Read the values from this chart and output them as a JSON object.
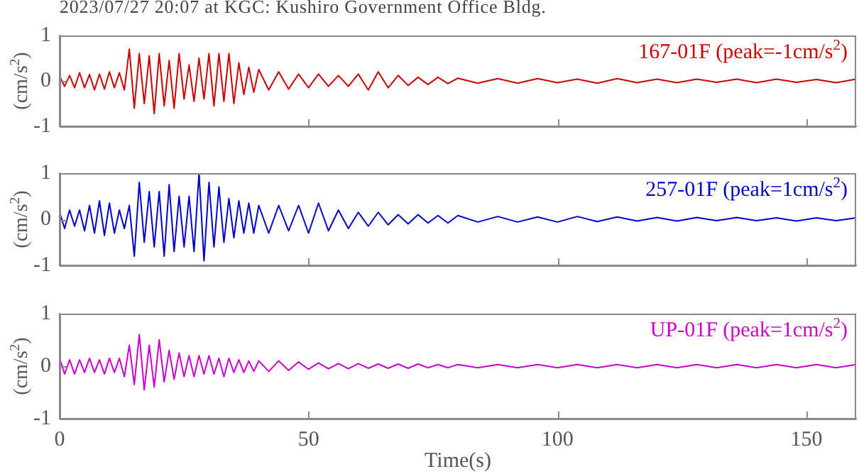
{
  "chart_data": [
    {
      "type": "line",
      "title": "2023/07/27 20:07 at KGC: Kushiro Government Office Bldg.",
      "ylabel": "(cm/s$^{2}$)",
      "annotations": [
        "167-01F (peak=-1cm/s$^{2}$)"
      ],
      "marker": "none",
      "tick_labels": "y",
      "xlim": [
        0,
        160
      ],
      "xticks": [
        0,
        50,
        100,
        150
      ],
      "ylim": [
        -1,
        1
      ],
      "yticks": [
        -1,
        0,
        1
      ],
      "x": [
        0,
        1,
        2,
        3,
        4,
        5,
        6,
        7,
        8,
        9,
        10,
        11,
        12,
        13,
        14,
        15,
        16,
        17,
        18,
        19,
        20,
        21,
        22,
        23,
        24,
        25,
        26,
        27,
        28,
        29,
        30,
        31,
        32,
        33,
        34,
        35,
        36,
        37,
        38,
        39,
        40,
        42,
        44,
        46,
        48,
        50,
        52,
        54,
        56,
        58,
        60,
        62,
        64,
        66,
        68,
        70,
        72,
        74,
        76,
        78,
        80,
        84,
        88,
        92,
        96,
        100,
        104,
        108,
        112,
        116,
        120,
        124,
        128,
        132,
        136,
        140,
        144,
        148,
        152,
        156,
        160
      ],
      "series": [
        {
          "color": "#cc0000",
          "values": [
            0.1,
            -0.12,
            0.12,
            -0.15,
            0.18,
            -0.15,
            0.14,
            -0.2,
            0.15,
            -0.18,
            0.2,
            -0.15,
            0.18,
            -0.2,
            0.7,
            -0.6,
            0.6,
            -0.5,
            0.55,
            -0.72,
            0.6,
            -0.55,
            0.45,
            -0.6,
            0.6,
            -0.4,
            0.35,
            -0.45,
            0.5,
            -0.4,
            0.6,
            -0.55,
            0.6,
            -0.45,
            0.6,
            -0.5,
            0.4,
            -0.3,
            0.3,
            -0.25,
            0.25,
            -0.2,
            0.2,
            -0.18,
            0.15,
            -0.15,
            0.15,
            -0.12,
            0.12,
            -0.12,
            0.15,
            -0.2,
            0.2,
            -0.15,
            0.12,
            -0.1,
            0.08,
            -0.08,
            0.08,
            -0.06,
            0.06,
            -0.05,
            0.05,
            -0.05,
            0.05,
            -0.04,
            0.04,
            -0.05,
            0.05,
            -0.04,
            0.04,
            -0.04,
            0.04,
            -0.03,
            0.04,
            -0.04,
            0.04,
            -0.03,
            0.03,
            -0.04,
            0.04
          ]
        }
      ]
    },
    {
      "type": "line",
      "ylabel": "(cm/s$^{2}$)",
      "annotations": [
        "257-01F (peak=1cm/s$^{2}$)"
      ],
      "marker": "none",
      "tick_labels": "y",
      "xlim": [
        0,
        160
      ],
      "xticks": [
        0,
        50,
        100,
        150
      ],
      "ylim": [
        -1,
        1
      ],
      "yticks": [
        -1,
        0,
        1
      ],
      "x": [
        0,
        1,
        2,
        3,
        4,
        5,
        6,
        7,
        8,
        9,
        10,
        11,
        12,
        13,
        14,
        15,
        16,
        17,
        18,
        19,
        20,
        21,
        22,
        23,
        24,
        25,
        26,
        27,
        28,
        29,
        30,
        31,
        32,
        33,
        34,
        35,
        36,
        37,
        38,
        39,
        40,
        42,
        44,
        46,
        48,
        50,
        52,
        54,
        56,
        58,
        60,
        62,
        64,
        66,
        68,
        70,
        72,
        74,
        76,
        78,
        80,
        84,
        88,
        92,
        96,
        100,
        104,
        108,
        112,
        116,
        120,
        124,
        128,
        132,
        136,
        140,
        144,
        148,
        152,
        156,
        160
      ],
      "series": [
        {
          "color": "#0000cc",
          "values": [
            0.15,
            -0.2,
            0.2,
            -0.15,
            0.2,
            -0.25,
            0.3,
            -0.3,
            0.4,
            -0.35,
            0.35,
            -0.3,
            0.2,
            -0.2,
            0.3,
            -0.8,
            0.8,
            -0.5,
            0.6,
            -0.6,
            0.6,
            -0.8,
            0.75,
            -0.7,
            0.5,
            -0.6,
            0.5,
            -0.7,
            1.0,
            -0.9,
            0.8,
            -0.6,
            0.7,
            -0.5,
            0.45,
            -0.4,
            0.4,
            -0.3,
            0.35,
            -0.3,
            0.3,
            -0.3,
            0.3,
            -0.25,
            0.3,
            -0.3,
            0.35,
            -0.25,
            0.2,
            -0.2,
            0.15,
            -0.15,
            0.15,
            -0.12,
            0.1,
            -0.1,
            0.1,
            -0.08,
            0.08,
            -0.08,
            0.08,
            -0.06,
            0.06,
            -0.06,
            0.05,
            -0.06,
            0.06,
            -0.05,
            0.05,
            -0.04,
            0.04,
            -0.04,
            0.04,
            -0.03,
            0.04,
            -0.03,
            0.03,
            -0.04,
            0.03,
            -0.03,
            0.03
          ]
        }
      ]
    },
    {
      "type": "line",
      "ylabel": "(cm/s$^{2}$)",
      "xlabel": "Time(s)",
      "annotations": [
        "UP-01F (peak=1cm/s$^{2}$)"
      ],
      "marker": "none",
      "xlim": [
        0,
        160
      ],
      "xticks": [
        0,
        50,
        100,
        150
      ],
      "ylim": [
        -1,
        1
      ],
      "yticks": [
        -1,
        0,
        1
      ],
      "x": [
        0,
        1,
        2,
        3,
        4,
        5,
        6,
        7,
        8,
        9,
        10,
        11,
        12,
        13,
        14,
        15,
        16,
        17,
        18,
        19,
        20,
        21,
        22,
        23,
        24,
        25,
        26,
        27,
        28,
        29,
        30,
        31,
        32,
        33,
        34,
        35,
        36,
        37,
        38,
        39,
        40,
        42,
        44,
        46,
        48,
        50,
        52,
        54,
        56,
        58,
        60,
        62,
        64,
        66,
        68,
        70,
        72,
        74,
        76,
        78,
        80,
        84,
        88,
        92,
        96,
        100,
        104,
        108,
        112,
        116,
        120,
        124,
        128,
        132,
        136,
        140,
        144,
        148,
        152,
        156,
        160
      ],
      "series": [
        {
          "color": "#cc00cc",
          "values": [
            0.15,
            -0.15,
            0.12,
            -0.15,
            0.12,
            -0.12,
            0.15,
            -0.12,
            0.12,
            -0.15,
            0.15,
            -0.12,
            0.15,
            -0.2,
            0.4,
            -0.35,
            0.6,
            -0.45,
            0.4,
            -0.4,
            0.5,
            -0.3,
            0.3,
            -0.25,
            0.25,
            -0.2,
            0.2,
            -0.2,
            0.2,
            -0.15,
            0.2,
            -0.15,
            0.15,
            -0.2,
            0.15,
            -0.12,
            0.12,
            -0.12,
            0.1,
            -0.1,
            0.1,
            -0.1,
            0.1,
            -0.08,
            0.08,
            -0.06,
            0.06,
            -0.05,
            0.05,
            -0.05,
            0.05,
            -0.04,
            0.04,
            -0.04,
            0.04,
            -0.04,
            0.04,
            -0.03,
            0.03,
            -0.03,
            0.03,
            -0.03,
            0.03,
            -0.03,
            0.03,
            -0.03,
            0.03,
            -0.03,
            0.03,
            -0.03,
            0.03,
            -0.03,
            0.03,
            -0.03,
            0.03,
            -0.03,
            0.03,
            -0.03,
            0.03,
            -0.03,
            0.03
          ]
        }
      ]
    }
  ]
}
